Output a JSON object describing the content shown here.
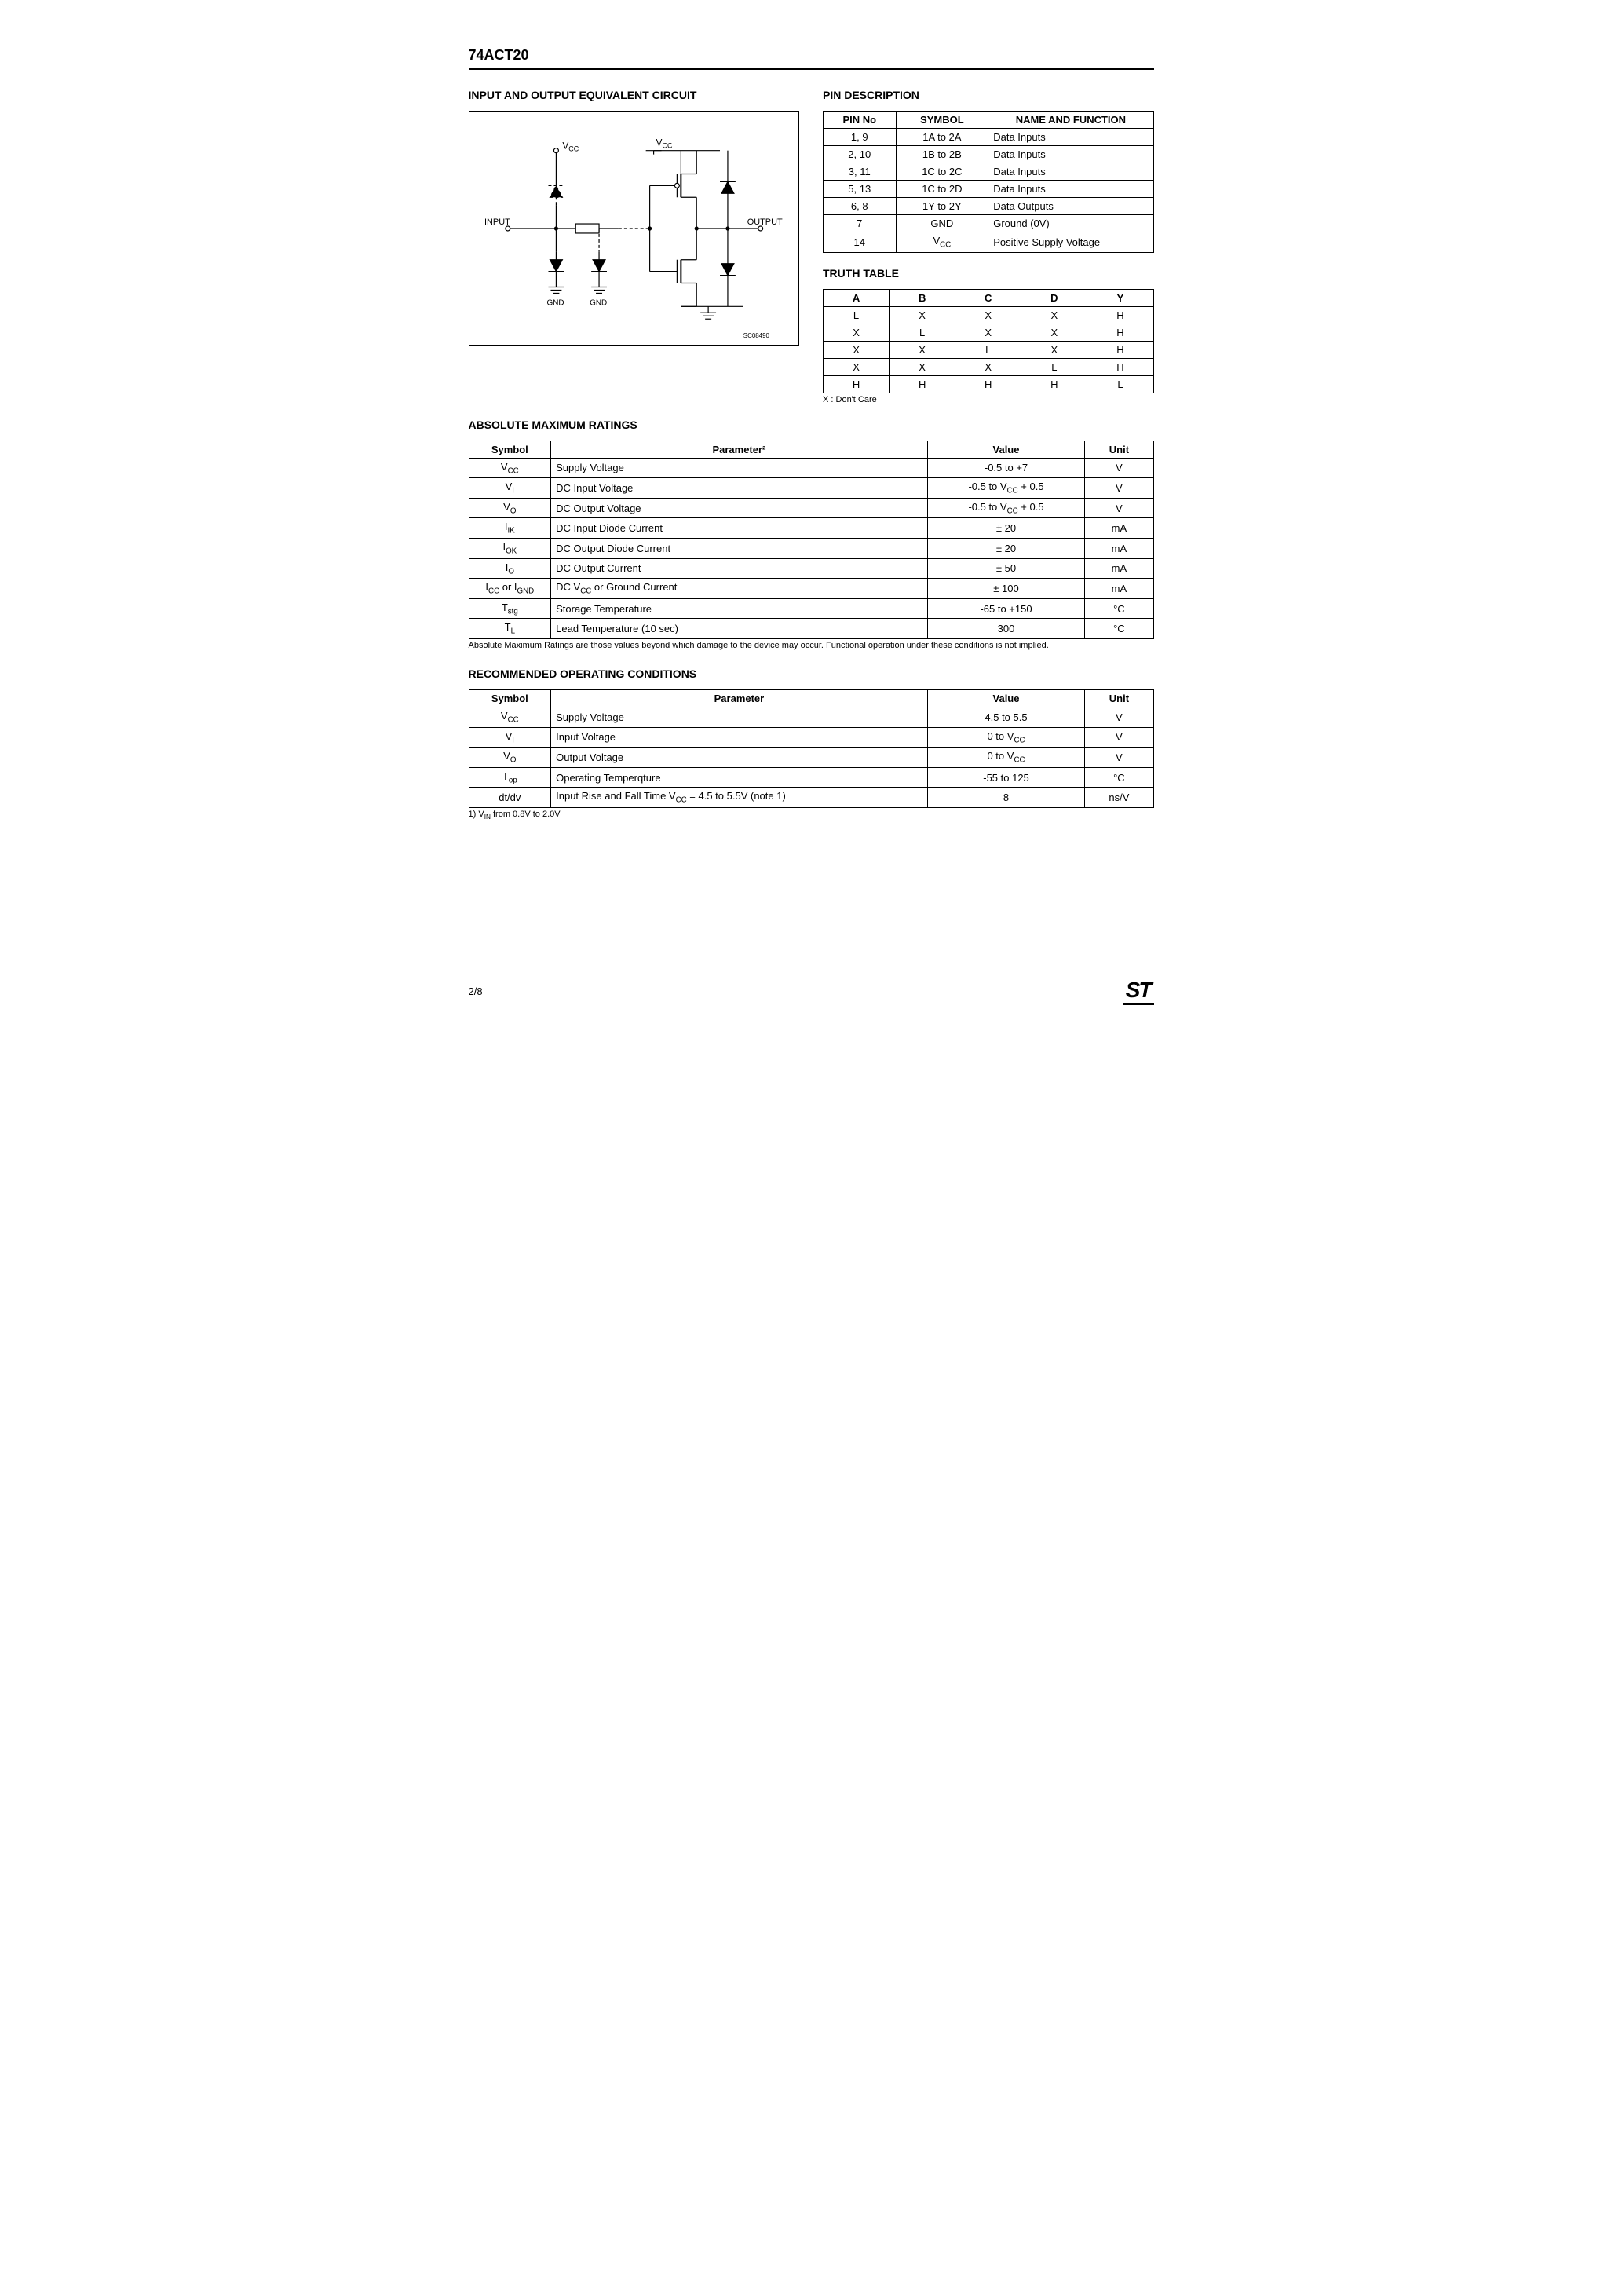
{
  "header": {
    "part_number": "74ACT20"
  },
  "circuit": {
    "title": "INPUT AND OUTPUT EQUIVALENT CIRCUIT",
    "labels": {
      "vcc1": "V",
      "vcc1_sub": "CC",
      "vcc2": "V",
      "vcc2_sub": "CC",
      "input": "INPUT",
      "output": "OUTPUT",
      "gnd1": "GND",
      "gnd2": "GND",
      "code": "SC08490"
    }
  },
  "pin_desc": {
    "title": "PIN DESCRIPTION",
    "headers": [
      "PIN No",
      "SYMBOL",
      "NAME AND FUNCTION"
    ],
    "rows": [
      {
        "pin": "1, 9",
        "sym": "1A to 2A",
        "func": "Data Inputs"
      },
      {
        "pin": "2, 10",
        "sym": "1B to 2B",
        "func": "Data Inputs"
      },
      {
        "pin": "3, 11",
        "sym": "1C to 2C",
        "func": "Data Inputs"
      },
      {
        "pin": "5, 13",
        "sym": "1C to 2D",
        "func": "Data Inputs"
      },
      {
        "pin": "6, 8",
        "sym": "1Y to 2Y",
        "func": "Data Outputs"
      },
      {
        "pin": "7",
        "sym": "GND",
        "func": "Ground (0V)"
      },
      {
        "pin": "14",
        "sym_html": "V<sub>CC</sub>",
        "func": "Positive Supply Voltage"
      }
    ]
  },
  "truth": {
    "title": "TRUTH TABLE",
    "headers": [
      "A",
      "B",
      "C",
      "D",
      "Y"
    ],
    "rows": [
      [
        "L",
        "X",
        "X",
        "X",
        "H"
      ],
      [
        "X",
        "L",
        "X",
        "X",
        "H"
      ],
      [
        "X",
        "X",
        "L",
        "X",
        "H"
      ],
      [
        "X",
        "X",
        "X",
        "L",
        "H"
      ],
      [
        "H",
        "H",
        "H",
        "H",
        "L"
      ]
    ],
    "note": "X : Don't Care"
  },
  "amr": {
    "title": "ABSOLUTE MAXIMUM RATINGS",
    "headers": [
      "Symbol",
      "Parameter²",
      "Value",
      "Unit"
    ],
    "rows": [
      {
        "sym_html": "V<sub>CC</sub>",
        "param": "Supply Voltage",
        "val": "-0.5 to +7",
        "unit": "V"
      },
      {
        "sym_html": "V<sub>I</sub>",
        "param": "DC Input Voltage",
        "val_html": "-0.5 to V<sub>CC</sub> + 0.5",
        "unit": "V"
      },
      {
        "sym_html": "V<sub>O</sub>",
        "param": "DC Output Voltage",
        "val_html": "-0.5 to V<sub>CC</sub> + 0.5",
        "unit": "V"
      },
      {
        "sym_html": "I<sub>IK</sub>",
        "param": "DC Input Diode Current",
        "val": "± 20",
        "unit": "mA"
      },
      {
        "sym_html": "I<sub>OK</sub>",
        "param": "DC Output Diode Current",
        "val": "± 20",
        "unit": "mA"
      },
      {
        "sym_html": "I<sub>O</sub>",
        "param": "DC Output Current",
        "val": "± 50",
        "unit": "mA"
      },
      {
        "sym_html": "I<sub>CC</sub> or I<sub>GND</sub>",
        "param_html": "DC V<sub>CC</sub> or Ground Current",
        "val": "± 100",
        "unit": "mA"
      },
      {
        "sym_html": "T<sub>stg</sub>",
        "param": "Storage Temperature",
        "val": "-65 to +150",
        "unit": "°C"
      },
      {
        "sym_html": "T<sub>L</sub>",
        "param": "Lead Temperature (10 sec)",
        "val": "300",
        "unit": "°C"
      }
    ],
    "note": "Absolute Maximum Ratings are those values beyond which damage to the device may occur. Functional operation under these conditions is not implied."
  },
  "roc": {
    "title": "RECOMMENDED OPERATING CONDITIONS",
    "headers": [
      "Symbol",
      "Parameter",
      "Value",
      "Unit"
    ],
    "rows": [
      {
        "sym_html": "V<sub>CC</sub>",
        "param": "Supply Voltage",
        "val": "4.5 to 5.5",
        "unit": "V"
      },
      {
        "sym_html": "V<sub>I</sub>",
        "param": "Input Voltage",
        "val_html": "0 to V<sub>CC</sub>",
        "unit": "V"
      },
      {
        "sym_html": "V<sub>O</sub>",
        "param": "Output Voltage",
        "val_html": "0 to V<sub>CC</sub>",
        "unit": "V"
      },
      {
        "sym_html": "T<sub>op</sub>",
        "param": "Operating Temperqture",
        "val": "-55 to 125",
        "unit": "°C"
      },
      {
        "sym": "dt/dv",
        "param_html": "Input Rise and Fall Time V<sub>CC</sub> = 4.5 to 5.5V (note 1)",
        "val": "8",
        "unit": "ns/V"
      }
    ],
    "note_html": "1) V<sub>IN</sub> from 0.8V to 2.0V"
  },
  "footer": {
    "page": "2/8",
    "logo": "ST"
  },
  "style": {
    "col_widths": {
      "pin": [
        "22%",
        "28%",
        "50%"
      ],
      "truth": [
        "20%",
        "20%",
        "20%",
        "20%",
        "20%"
      ],
      "amr": [
        "12%",
        "55%",
        "23%",
        "10%"
      ],
      "roc": [
        "12%",
        "55%",
        "23%",
        "10%"
      ]
    }
  }
}
